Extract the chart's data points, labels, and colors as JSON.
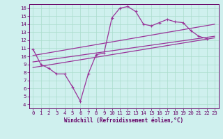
{
  "xlabel": "Windchill (Refroidissement éolien,°C)",
  "background_color": "#cff0ee",
  "line_color": "#993399",
  "xlim": [
    -0.5,
    23.5
  ],
  "ylim": [
    3.5,
    16.5
  ],
  "xticks": [
    0,
    1,
    2,
    3,
    4,
    5,
    6,
    7,
    8,
    9,
    10,
    11,
    12,
    13,
    14,
    15,
    16,
    17,
    18,
    19,
    20,
    21,
    22,
    23
  ],
  "yticks": [
    4,
    5,
    6,
    7,
    8,
    9,
    10,
    11,
    12,
    13,
    14,
    15,
    16
  ],
  "series_main": {
    "x": [
      0,
      1,
      2,
      3,
      4,
      5,
      6,
      7,
      8,
      9,
      10,
      11,
      12,
      13,
      14,
      15,
      16,
      17,
      18,
      19,
      20,
      21,
      22
    ],
    "y": [
      10.9,
      9.0,
      8.5,
      7.8,
      7.8,
      6.2,
      4.4,
      7.8,
      10.2,
      10.4,
      14.8,
      16.0,
      16.2,
      15.6,
      14.0,
      13.8,
      14.2,
      14.6,
      14.3,
      14.2,
      13.2,
      12.5,
      12.2
    ]
  },
  "series_linear": [
    {
      "x": [
        0,
        23
      ],
      "y": [
        8.6,
        12.3
      ]
    },
    {
      "x": [
        0,
        23
      ],
      "y": [
        9.3,
        12.5
      ]
    },
    {
      "x": [
        0,
        23
      ],
      "y": [
        10.1,
        14.0
      ]
    }
  ],
  "grid_color": "#aaddcc",
  "tick_color": "#660066",
  "spine_color": "#660066",
  "xlabel_fontsize": 5.5,
  "tick_fontsize": 5.2,
  "marker": "+",
  "marker_size": 3.5,
  "linewidth": 0.9
}
